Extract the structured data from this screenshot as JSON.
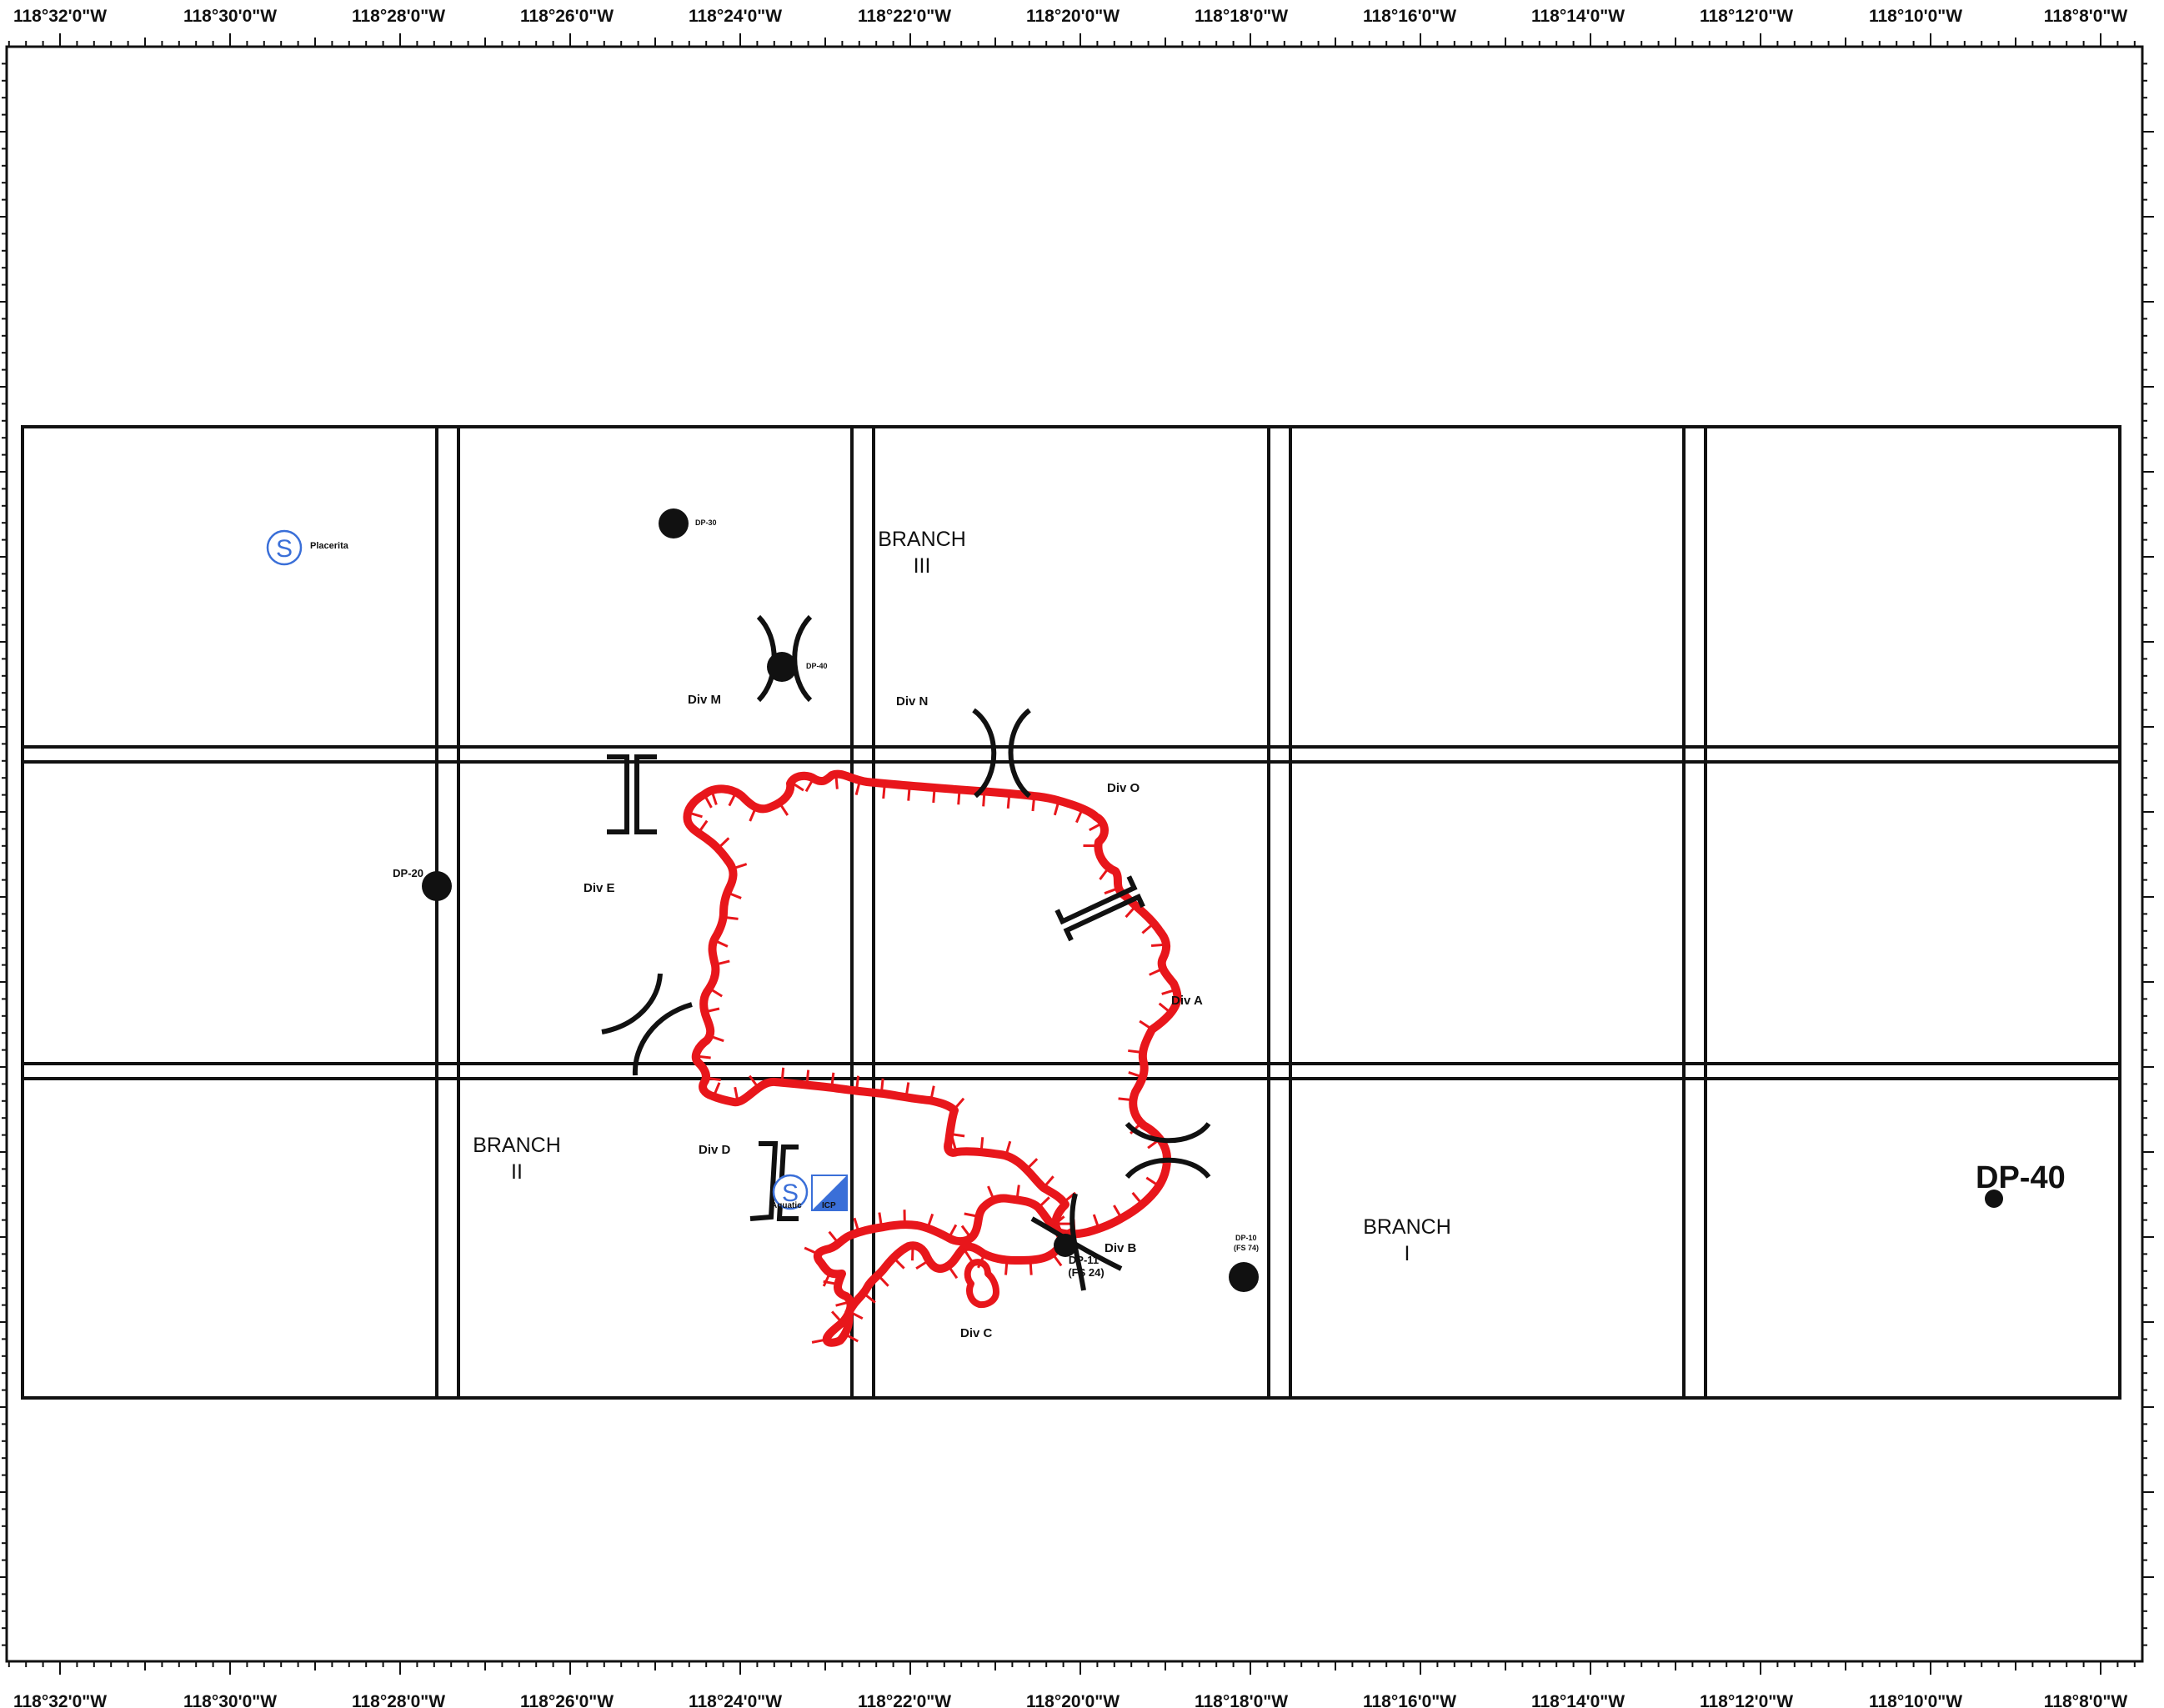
{
  "longitude_labels": [
    "118°32'0\"W",
    "118°30'0\"W",
    "118°28'0\"W",
    "118°26'0\"W",
    "118°24'0\"W",
    "118°22'0\"W",
    "118°20'0\"W",
    "118°18'0\"W",
    "118°16'0\"W",
    "118°14'0\"W",
    "118°12'0\"W",
    "118°10'0\"W",
    "118°8'0\"W"
  ],
  "branches": {
    "branch_1": {
      "word": "BRANCH",
      "numeral": "I"
    },
    "branch_2": {
      "word": "BRANCH",
      "numeral": "II"
    },
    "branch_3": {
      "word": "BRANCH",
      "numeral": "III"
    }
  },
  "divisions": {
    "div_a": "Div A",
    "div_b": "Div B",
    "div_c": "Div C",
    "div_d": "Div D",
    "div_e": "Div E",
    "div_m": "Div M",
    "div_n": "Div N",
    "div_o": "Div O"
  },
  "drop_points": {
    "dp_20": "DP-20",
    "dp_30": "DP-30",
    "dp_40_small": "DP-40",
    "dp_40_large": "DP-40",
    "dp_10_line1": "DP-10",
    "dp_10_line2": "(FS 74)",
    "dp_11_line1": "DP-11",
    "dp_11_line2": "(FS 24)"
  },
  "staging_areas": {
    "placerita": "Placerita",
    "aquatic": "Aquatic",
    "icp": "ICP",
    "staging_glyph": "S"
  },
  "colors": {
    "fire_perimeter": "#e8161b",
    "staging_blue": "#3a6fd8",
    "grid": "#111111"
  },
  "icons": {
    "staging_area": "staging-area-icon",
    "icp": "incident-command-post-icon",
    "drop_point": "drop-point-icon",
    "branch_break": "branch-break-icon",
    "division_break": "division-break-icon"
  }
}
